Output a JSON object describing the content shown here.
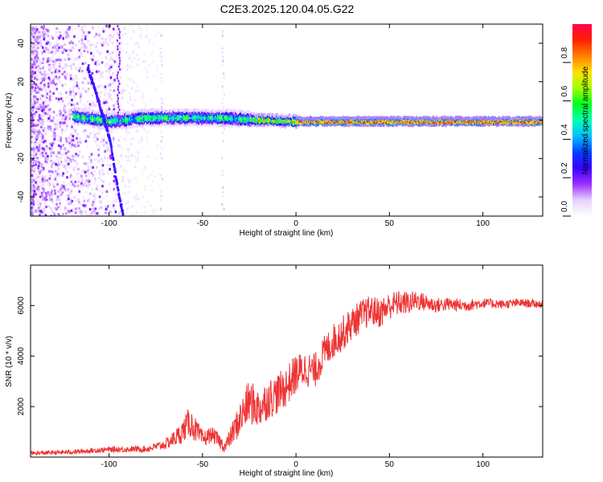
{
  "title": "C2E3.2025.120.04.05.G22",
  "chart_data": [
    {
      "type": "heatmap",
      "xlabel": "Height of straight line (km)",
      "ylabel": "Frequency (Hz)",
      "xlim": [
        -142,
        132
      ],
      "ylim": [
        -50,
        50
      ],
      "xticks": [
        -100,
        -50,
        0,
        50,
        100
      ],
      "yticks": [
        -40,
        -20,
        0,
        20,
        40
      ],
      "colorbar": {
        "label": "Normalized spectral amplitude",
        "range": [
          0,
          1
        ],
        "ticks": [
          0.0,
          0.2,
          0.4,
          0.6,
          0.8
        ],
        "colors": [
          "#ffffff",
          "#e6d2ff",
          "#9b30ff",
          "#3a00ff",
          "#0040ff",
          "#00c0ff",
          "#00ffb0",
          "#00ff20",
          "#a0ff00",
          "#ffe000",
          "#ff8000",
          "#ff2000",
          "#ff0050"
        ]
      },
      "features": [
        {
          "name": "carrier line",
          "points": [
            [
              -120,
              3
            ],
            [
              -100,
              0
            ],
            [
              -80,
              2
            ],
            [
              -60,
              2
            ],
            [
              -40,
              2
            ],
            [
              -25,
              1
            ],
            [
              0,
              0
            ],
            [
              132,
              0
            ]
          ]
        },
        {
          "name": "drifting trace",
          "points": [
            [
              -112,
              28
            ],
            [
              -106,
              10
            ],
            [
              -100,
              -10
            ],
            [
              -95,
              -40
            ],
            [
              -93,
              -48
            ]
          ]
        }
      ]
    },
    {
      "type": "line",
      "xlabel": "Height of straight line (km)",
      "ylabel": "SNR (10 * v/v)",
      "xlim": [
        -142,
        132
      ],
      "ylim": [
        0,
        7600
      ],
      "xticks": [
        -100,
        -50,
        0,
        50,
        100
      ],
      "yticks": [
        2000,
        4000,
        6000
      ],
      "series": [
        {
          "color": "#ee3333",
          "x": [
            -142,
            -120,
            -100,
            -80,
            -70,
            -62,
            -57,
            -54,
            -50,
            -45,
            -42,
            -38,
            -35,
            -30,
            -25,
            -20,
            -15,
            -10,
            -5,
            0,
            5,
            10,
            15,
            20,
            25,
            30,
            35,
            40,
            45,
            50,
            55,
            60,
            65,
            70,
            75,
            80,
            90,
            100,
            110,
            120,
            132
          ],
          "y": [
            150,
            200,
            300,
            320,
            500,
            900,
            1400,
            1100,
            700,
            900,
            700,
            400,
            800,
            1500,
            2200,
            1900,
            2300,
            2500,
            2800,
            3300,
            3500,
            3400,
            4100,
            4600,
            4900,
            5300,
            5600,
            5800,
            5700,
            6000,
            6100,
            6100,
            6200,
            6100,
            6000,
            6050,
            6000,
            6100,
            6050,
            6100,
            6050
          ],
          "noise_amplitude": [
            80,
            90,
            110,
            130,
            200,
            400,
            600,
            500,
            350,
            300,
            300,
            250,
            400,
            700,
            900,
            800,
            800,
            800,
            800,
            800,
            700,
            700,
            700,
            700,
            700,
            650,
            650,
            600,
            600,
            550,
            500,
            450,
            400,
            350,
            300,
            280,
            250,
            200,
            180,
            170,
            160
          ]
        }
      ]
    }
  ]
}
